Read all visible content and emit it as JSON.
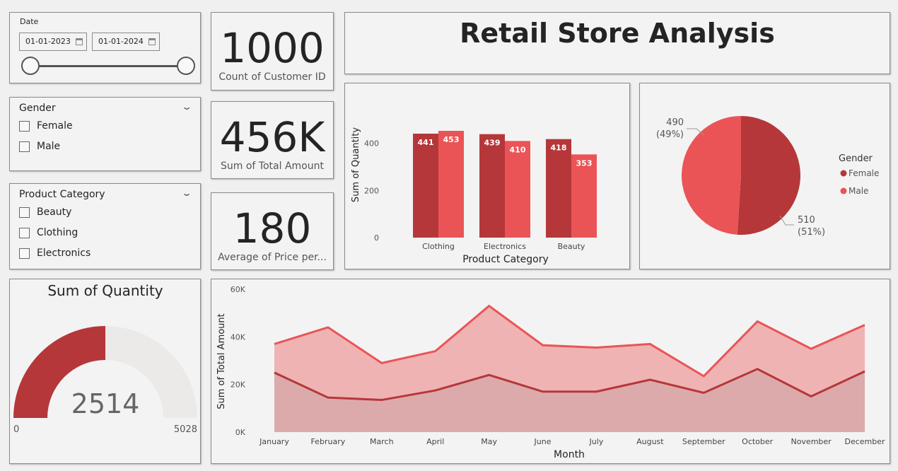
{
  "date_slicer": {
    "label": "Date",
    "start": "01-01-2023",
    "end": "01-01-2024"
  },
  "gender_slicer": {
    "title": "Gender",
    "items": [
      "Female",
      "Male"
    ]
  },
  "category_slicer": {
    "title": "Product Category",
    "items": [
      "Beauty",
      "Clothing",
      "Electronics"
    ]
  },
  "kpis": {
    "customers": {
      "value": "1000",
      "label": "Count of Customer ID"
    },
    "total_amount": {
      "value": "456K",
      "label": "Sum of Total Amount"
    },
    "avg_price": {
      "value": "180",
      "label": "Average of Price per..."
    }
  },
  "report_title": "Retail Store Analysis",
  "gauge": {
    "title": "Sum of Quantity",
    "value": "2514",
    "min": "0",
    "max": "5028",
    "fraction": 0.5
  },
  "colors": {
    "female": "#b5373a",
    "male": "#ea5456",
    "area_top": "#f0b3b3",
    "area_bottom": "#dcaaaa"
  },
  "chart_data": [
    {
      "type": "bar",
      "xlabel": "Product Category",
      "ylabel": "Sum of Quantity",
      "categories": [
        "Clothing",
        "Electronics",
        "Beauty"
      ],
      "series": [
        {
          "name": "Female",
          "values": [
            441,
            439,
            418
          ]
        },
        {
          "name": "Male",
          "values": [
            453,
            410,
            353
          ]
        }
      ],
      "yticks": [
        "0",
        "200",
        "400"
      ],
      "ylim": [
        0,
        480
      ]
    },
    {
      "type": "pie",
      "legend_title": "Gender",
      "slices": [
        {
          "name": "Female",
          "value": 510,
          "label": "510",
          "pct": "(51%)"
        },
        {
          "name": "Male",
          "value": 490,
          "label": "490",
          "pct": "(49%)"
        }
      ],
      "legend_position": "right"
    },
    {
      "type": "area",
      "xlabel": "Month",
      "ylabel": "Sum of Total Amount",
      "categories": [
        "January",
        "February",
        "March",
        "April",
        "May",
        "June",
        "July",
        "August",
        "September",
        "October",
        "November",
        "December"
      ],
      "series": [
        {
          "name": "Male",
          "values": [
            37000,
            44000,
            29000,
            34000,
            53000,
            36500,
            35500,
            37000,
            23500,
            46500,
            35000,
            45000
          ]
        },
        {
          "name": "Female",
          "values": [
            25000,
            14500,
            13500,
            17500,
            24000,
            17000,
            17000,
            22000,
            16500,
            26500,
            15000,
            25500
          ]
        }
      ],
      "yticks": [
        "0K",
        "20K",
        "40K",
        "60K"
      ],
      "ylim": [
        0,
        60000
      ]
    }
  ]
}
